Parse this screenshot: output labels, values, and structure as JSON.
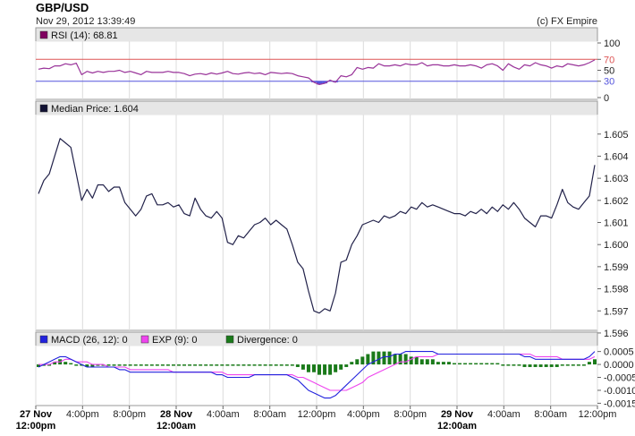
{
  "header": {
    "symbol": "GBP/USD",
    "timestamp": "Nov 29, 2012 13:39:49",
    "copyright": "(c) FX Empire"
  },
  "colors": {
    "price_line": "#22224a",
    "rsi_line": "#993399",
    "rsi_70": "#dd5555",
    "rsi_30": "#5555dd",
    "macd_line": "#2222dd",
    "exp_line": "#ee44ee",
    "divergence": "#1a7a1a",
    "legend_bar": "#e6e6e6",
    "grid": "#dcdcdc"
  },
  "chart_data": [
    {
      "type": "line",
      "name": "rsi-panel",
      "legend": "RSI (14): 68.81",
      "ylim": [
        0,
        100
      ],
      "yticks": [
        "100",
        "50",
        "0"
      ],
      "levels": [
        {
          "value": 70,
          "label": "70",
          "color": "#dd5555"
        },
        {
          "value": 30,
          "label": "30",
          "color": "#5555dd"
        }
      ],
      "values": [
        52,
        54,
        53,
        58,
        58,
        62,
        60,
        63,
        42,
        48,
        45,
        48,
        46,
        48,
        48,
        50,
        46,
        48,
        45,
        42,
        48,
        46,
        46,
        46,
        48,
        46,
        46,
        44,
        40,
        43,
        44,
        42,
        45,
        43,
        45,
        48,
        44,
        43,
        45,
        46,
        44,
        45,
        42,
        46,
        45,
        44,
        45,
        44,
        40,
        38,
        36,
        28,
        24,
        26,
        32,
        28,
        40,
        38,
        42,
        55,
        52,
        55,
        54,
        62,
        58,
        58,
        60,
        58,
        62,
        60,
        60,
        64,
        58,
        60,
        60,
        58,
        58,
        60,
        58,
        58,
        60,
        58,
        54,
        60,
        62,
        58,
        50,
        62,
        56,
        52,
        60,
        58,
        64,
        60,
        58,
        54,
        58,
        56,
        62,
        60,
        58,
        60,
        64,
        69
      ]
    },
    {
      "type": "line",
      "name": "price-panel",
      "legend": "Median Price: 1.604",
      "ylim": [
        1.5962,
        1.6058
      ],
      "yticks": [
        "1.605",
        "1.604",
        "1.603",
        "1.602",
        "1.601",
        "1.600",
        "1.599",
        "1.598",
        "1.597",
        "1.596"
      ],
      "values": [
        1.6023,
        1.6029,
        1.6032,
        1.604,
        1.6048,
        1.6046,
        1.6044,
        1.6032,
        1.602,
        1.6025,
        1.6021,
        1.6027,
        1.6027,
        1.6024,
        1.6026,
        1.6026,
        1.6019,
        1.6016,
        1.6013,
        1.6016,
        1.6022,
        1.6023,
        1.6018,
        1.6018,
        1.6019,
        1.6017,
        1.6018,
        1.6014,
        1.6013,
        1.6021,
        1.6016,
        1.6013,
        1.6012,
        1.6015,
        1.6012,
        1.6001,
        1.6,
        1.6004,
        1.6003,
        1.6006,
        1.6009,
        1.601,
        1.6012,
        1.6009,
        1.6011,
        1.6009,
        1.6007,
        1.6,
        1.5992,
        1.5989,
        1.5979,
        1.597,
        1.5969,
        1.5971,
        1.597,
        1.5978,
        1.5992,
        1.5993,
        1.6,
        1.6004,
        1.6009,
        1.601,
        1.6011,
        1.601,
        1.6013,
        1.6012,
        1.6013,
        1.6015,
        1.6014,
        1.6017,
        1.6016,
        1.6019,
        1.6017,
        1.6018,
        1.6017,
        1.6016,
        1.6015,
        1.6014,
        1.6014,
        1.6013,
        1.6015,
        1.6014,
        1.6016,
        1.6014,
        1.6017,
        1.6015,
        1.6018,
        1.6016,
        1.6019,
        1.6016,
        1.6012,
        1.601,
        1.6008,
        1.6013,
        1.6013,
        1.6012,
        1.6018,
        1.6025,
        1.6019,
        1.6017,
        1.6016,
        1.6019,
        1.6022,
        1.6036
      ]
    },
    {
      "type": "line",
      "name": "macd-panel",
      "legends": [
        {
          "label": "MACD (26, 12): 0",
          "color": "#2222dd"
        },
        {
          "label": "EXP (9): 0",
          "color": "#ee44ee"
        },
        {
          "label": "Divergence: 0",
          "color": "#1a7a1a"
        }
      ],
      "ylim": [
        -0.00152,
        0.00066
      ],
      "yticks": [
        "0.0005",
        "0.0000",
        "-0.0005",
        "-0.0010",
        "-0.0015"
      ],
      "macd": [
        -0.0001,
        0.0,
        0.0001,
        0.0002,
        0.0003,
        0.0003,
        0.0002,
        0.0001,
        0.0,
        -0.0001,
        -0.0001,
        -0.0001,
        -0.0001,
        -0.0001,
        -0.0001,
        -0.0002,
        -0.0002,
        -0.0003,
        -0.0003,
        -0.0003,
        -0.0003,
        -0.0003,
        -0.0003,
        -0.0003,
        -0.0003,
        -0.0003,
        -0.0003,
        -0.0003,
        -0.0003,
        -0.0003,
        -0.0003,
        -0.0003,
        -0.0003,
        -0.0004,
        -0.0004,
        -0.0005,
        -0.0005,
        -0.0005,
        -0.0005,
        -0.0005,
        -0.0004,
        -0.0004,
        -0.0004,
        -0.0004,
        -0.0004,
        -0.0004,
        -0.0004,
        -0.0005,
        -0.0006,
        -0.0008,
        -0.001,
        -0.0011,
        -0.0012,
        -0.0013,
        -0.0013,
        -0.0012,
        -0.001,
        -0.0008,
        -0.0006,
        -0.0004,
        -0.0002,
        0.0,
        0.0001,
        0.0002,
        0.0003,
        0.0003,
        0.0004,
        0.0004,
        0.0005,
        0.0005,
        0.0005,
        0.0005,
        0.0005,
        0.0005,
        0.0004,
        0.0004,
        0.0004,
        0.0004,
        0.0004,
        0.0004,
        0.0004,
        0.0004,
        0.0004,
        0.0004,
        0.0004,
        0.0004,
        0.0004,
        0.0004,
        0.0004,
        0.0004,
        0.0003,
        0.0003,
        0.0002,
        0.0002,
        0.0002,
        0.0002,
        0.0002,
        0.0002,
        0.0002,
        0.0002,
        0.0002,
        0.0002,
        0.0003,
        0.0005
      ],
      "exp": [
        0.0,
        0.0,
        0.0,
        0.0001,
        0.0001,
        0.0002,
        0.0002,
        0.0001,
        0.0001,
        0.0001,
        0.0,
        0.0,
        0.0,
        -0.0001,
        -0.0001,
        -0.0001,
        -0.0001,
        -0.0002,
        -0.0002,
        -0.0002,
        -0.0002,
        -0.0002,
        -0.0002,
        -0.0002,
        -0.0002,
        -0.0003,
        -0.0003,
        -0.0003,
        -0.0003,
        -0.0003,
        -0.0003,
        -0.0003,
        -0.0003,
        -0.0003,
        -0.0003,
        -0.0004,
        -0.0004,
        -0.0004,
        -0.0004,
        -0.0004,
        -0.0004,
        -0.0004,
        -0.0004,
        -0.0004,
        -0.0004,
        -0.0004,
        -0.0004,
        -0.0004,
        -0.0005,
        -0.0005,
        -0.0006,
        -0.0007,
        -0.0008,
        -0.0009,
        -0.001,
        -0.001,
        -0.001,
        -0.001,
        -0.0009,
        -0.0008,
        -0.0007,
        -0.0005,
        -0.0004,
        -0.0003,
        -0.0002,
        -0.0001,
        0.0,
        0.0001,
        0.0001,
        0.0002,
        0.0003,
        0.0003,
        0.0003,
        0.0003,
        0.0004,
        0.0004,
        0.0004,
        0.0004,
        0.0004,
        0.0004,
        0.0004,
        0.0004,
        0.0004,
        0.0004,
        0.0004,
        0.0004,
        0.0004,
        0.0004,
        0.0004,
        0.0004,
        0.0004,
        0.0004,
        0.0003,
        0.0003,
        0.0003,
        0.0003,
        0.0003,
        0.0002,
        0.0002,
        0.0002,
        0.0002,
        0.0002,
        0.0002,
        0.0003
      ],
      "divergence": [
        -0.0001,
        -5e-05,
        0.0,
        0.0001,
        0.0002,
        0.0001,
        5e-05,
        0.0,
        -5e-05,
        -0.0001,
        -0.0001,
        -5e-05,
        -5e-05,
        -5e-05,
        -5e-05,
        -5e-05,
        -5e-05,
        -5e-05,
        -5e-05,
        -5e-05,
        -5e-05,
        -5e-05,
        -5e-05,
        -5e-05,
        -5e-05,
        -5e-05,
        -5e-05,
        -5e-05,
        -5e-05,
        -5e-05,
        -5e-05,
        -5e-05,
        -5e-05,
        -5e-05,
        -5e-05,
        -5e-05,
        -5e-05,
        -5e-05,
        -5e-05,
        -5e-05,
        -5e-05,
        -5e-05,
        -5e-05,
        -5e-05,
        -5e-05,
        -5e-05,
        -5e-05,
        -5e-05,
        -0.0001,
        -0.0002,
        -0.0003,
        -0.0003,
        -0.0004,
        -0.0004,
        -0.0004,
        -0.0003,
        -0.0002,
        -0.0001,
        0.0001,
        0.0002,
        0.0003,
        0.0004,
        0.0005,
        0.0005,
        0.0005,
        0.0005,
        0.0004,
        0.0004,
        0.0004,
        0.0003,
        0.0003,
        0.0002,
        0.0002,
        0.0002,
        0.0001,
        0.0001,
        0.0001,
        5e-05,
        5e-05,
        5e-05,
        5e-05,
        5e-05,
        5e-05,
        5e-05,
        5e-05,
        5e-05,
        0.0,
        -5e-05,
        -5e-05,
        -5e-05,
        -0.0001,
        -0.0001,
        -0.0001,
        -0.0001,
        -0.0001,
        -0.0001,
        -0.0001,
        -5e-05,
        -5e-05,
        -5e-05,
        -5e-05,
        -5e-05,
        0.0001,
        0.0002
      ]
    }
  ],
  "x_axis": {
    "ticks": [
      {
        "pos": 0.0,
        "line1": "27 Nov",
        "line2": "12:00pm",
        "bold": true
      },
      {
        "pos": 0.0833,
        "line1": "4:00pm",
        "line2": "",
        "bold": false
      },
      {
        "pos": 0.1667,
        "line1": "8:00pm",
        "line2": "",
        "bold": false
      },
      {
        "pos": 0.25,
        "line1": "28 Nov",
        "line2": "12:00am",
        "bold": true
      },
      {
        "pos": 0.3333,
        "line1": "4:00am",
        "line2": "",
        "bold": false
      },
      {
        "pos": 0.4167,
        "line1": "8:00am",
        "line2": "",
        "bold": false
      },
      {
        "pos": 0.5,
        "line1": "12:00pm",
        "line2": "",
        "bold": false
      },
      {
        "pos": 0.5833,
        "line1": "4:00pm",
        "line2": "",
        "bold": false
      },
      {
        "pos": 0.6667,
        "line1": "8:00pm",
        "line2": "",
        "bold": false
      },
      {
        "pos": 0.75,
        "line1": "29 Nov",
        "line2": "12:00am",
        "bold": true
      },
      {
        "pos": 0.8333,
        "line1": "4:00am",
        "line2": "",
        "bold": false
      },
      {
        "pos": 0.9167,
        "line1": "8:00am",
        "line2": "",
        "bold": false
      },
      {
        "pos": 1.0,
        "line1": "12:00pm",
        "line2": "",
        "bold": false
      }
    ]
  }
}
